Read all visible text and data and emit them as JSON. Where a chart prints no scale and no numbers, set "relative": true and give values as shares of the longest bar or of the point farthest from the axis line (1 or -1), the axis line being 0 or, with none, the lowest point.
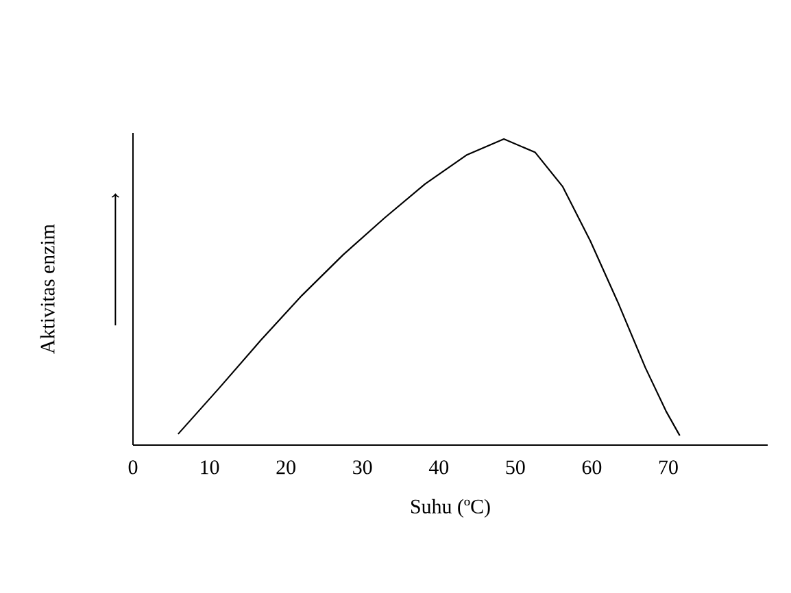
{
  "chart_data": {
    "type": "line",
    "xlabel": "Suhu (ºC)",
    "ylabel": "Aktivitas  enzim",
    "relative": true,
    "xlim": [
      0,
      83
    ],
    "xticks": [
      0,
      10,
      20,
      30,
      40,
      50,
      60,
      70
    ],
    "series": [
      {
        "color": "#000000",
        "x": [
          5.9,
          11.3,
          16.7,
          22.1,
          27.5,
          32.9,
          38.2,
          43.6,
          48.5,
          52.6,
          56.2,
          59.8,
          63.4,
          67.0,
          69.7,
          71.5
        ],
        "values": [
          0.036,
          0.187,
          0.342,
          0.489,
          0.622,
          0.742,
          0.853,
          0.947,
          1.0,
          0.956,
          0.844,
          0.667,
          0.467,
          0.253,
          0.111,
          0.031
        ]
      }
    ]
  }
}
